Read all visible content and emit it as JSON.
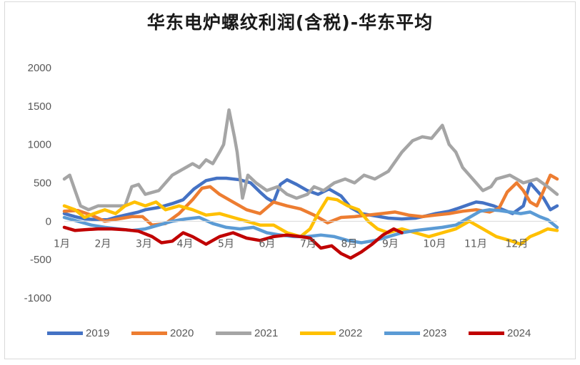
{
  "chart_data": {
    "type": "line",
    "title": "华东电炉螺纹利润(含税)-华东平均",
    "xlabel": "",
    "ylabel": "",
    "ylim": [
      -1000,
      2000
    ],
    "yticks": [
      2000,
      1500,
      1000,
      500,
      0,
      -500,
      -1000
    ],
    "xlim": [
      0,
      365
    ],
    "month_labels": [
      "1月",
      "2月",
      "3月",
      "4月",
      "5月",
      "6月",
      "7月",
      "8月",
      "9月",
      "10月",
      "11月",
      "12月"
    ],
    "grid": false,
    "legend_position": "bottom",
    "series": [
      {
        "name": "2019",
        "color": "#4472c4",
        "x": [
          0,
          8,
          15,
          25,
          32,
          40,
          50,
          55,
          60,
          70,
          80,
          88,
          96,
          105,
          113,
          120,
          130,
          138,
          145,
          150,
          155,
          160,
          165,
          172,
          180,
          188,
          196,
          205,
          212,
          220,
          230,
          240,
          250,
          260,
          268,
          275,
          285,
          292,
          300,
          305,
          310,
          318,
          325,
          332,
          340,
          345,
          350,
          355,
          360,
          365
        ],
        "y": [
          100,
          60,
          30,
          20,
          20,
          60,
          100,
          120,
          150,
          180,
          230,
          280,
          420,
          530,
          560,
          560,
          540,
          500,
          380,
          300,
          250,
          480,
          540,
          480,
          400,
          350,
          420,
          330,
          180,
          100,
          70,
          40,
          30,
          40,
          70,
          100,
          130,
          170,
          220,
          250,
          240,
          200,
          150,
          100,
          200,
          500,
          400,
          300,
          150,
          200
        ]
      },
      {
        "name": "2020",
        "color": "#ed7d31",
        "x": [
          0,
          10,
          20,
          30,
          40,
          50,
          58,
          65,
          75,
          85,
          95,
          102,
          108,
          115,
          125,
          135,
          145,
          155,
          165,
          175,
          185,
          195,
          205,
          215,
          225,
          235,
          245,
          255,
          265,
          275,
          285,
          295,
          305,
          315,
          322,
          328,
          335,
          340,
          345,
          350,
          355,
          360,
          365
        ],
        "y": [
          130,
          140,
          80,
          0,
          30,
          60,
          60,
          -50,
          -30,
          100,
          280,
          430,
          450,
          350,
          250,
          150,
          100,
          250,
          200,
          160,
          80,
          -20,
          50,
          60,
          80,
          100,
          120,
          80,
          60,
          80,
          100,
          130,
          150,
          120,
          170,
          380,
          500,
          400,
          250,
          200,
          400,
          600,
          550
        ]
      },
      {
        "name": "2021",
        "color": "#a5a5a5",
        "x": [
          0,
          4,
          8,
          12,
          18,
          25,
          35,
          45,
          50,
          55,
          60,
          70,
          80,
          90,
          95,
          100,
          105,
          110,
          115,
          118,
          122,
          126,
          128,
          132,
          136,
          142,
          150,
          158,
          165,
          172,
          180,
          185,
          192,
          200,
          208,
          215,
          222,
          230,
          240,
          250,
          258,
          265,
          272,
          280,
          285,
          290,
          295,
          300,
          305,
          310,
          316,
          320,
          330,
          340,
          350,
          358,
          365
        ],
        "y": [
          550,
          600,
          400,
          200,
          150,
          200,
          200,
          200,
          450,
          480,
          350,
          400,
          600,
          700,
          750,
          700,
          800,
          750,
          900,
          1000,
          1450,
          1100,
          900,
          300,
          600,
          500,
          400,
          450,
          350,
          300,
          350,
          450,
          400,
          500,
          550,
          500,
          600,
          550,
          650,
          900,
          1050,
          1100,
          1080,
          1250,
          1000,
          900,
          700,
          600,
          500,
          400,
          450,
          550,
          600,
          500,
          550,
          450,
          350
        ]
      },
      {
        "name": "2022",
        "color": "#ffc000",
        "x": [
          0,
          8,
          15,
          22,
          30,
          38,
          45,
          52,
          60,
          68,
          75,
          85,
          95,
          105,
          115,
          125,
          135,
          145,
          155,
          165,
          175,
          182,
          188,
          195,
          202,
          210,
          218,
          225,
          232,
          240,
          250,
          260,
          270,
          280,
          290,
          300,
          310,
          320,
          330,
          338,
          345,
          352,
          358,
          365
        ],
        "y": [
          200,
          150,
          50,
          100,
          150,
          100,
          200,
          250,
          200,
          250,
          150,
          200,
          150,
          80,
          100,
          50,
          0,
          -50,
          -50,
          -150,
          -200,
          -100,
          100,
          300,
          280,
          200,
          150,
          0,
          -100,
          -150,
          -100,
          -150,
          -200,
          -150,
          -100,
          0,
          -100,
          -200,
          -250,
          -300,
          -200,
          -150,
          -100,
          -120
        ]
      },
      {
        "name": "2023",
        "color": "#5b9bd5",
        "x": [
          0,
          10,
          20,
          30,
          40,
          50,
          60,
          70,
          80,
          90,
          100,
          110,
          120,
          130,
          140,
          150,
          160,
          170,
          180,
          190,
          200,
          210,
          220,
          230,
          240,
          250,
          260,
          270,
          280,
          290,
          300,
          308,
          315,
          322,
          330,
          338,
          345,
          352,
          358,
          365
        ],
        "y": [
          50,
          0,
          -50,
          -80,
          -100,
          -120,
          -100,
          -50,
          0,
          30,
          50,
          -30,
          -80,
          -100,
          -80,
          -150,
          -180,
          -200,
          -200,
          -180,
          -200,
          -250,
          -280,
          -250,
          -200,
          -150,
          -120,
          -100,
          -80,
          -50,
          50,
          130,
          150,
          140,
          120,
          100,
          120,
          60,
          20,
          -80
        ]
      },
      {
        "name": "2024",
        "color": "#c00000",
        "x": [
          0,
          8,
          15,
          25,
          35,
          45,
          55,
          65,
          72,
          80,
          88,
          95,
          105,
          115,
          125,
          135,
          145,
          155,
          165,
          175,
          182,
          190,
          198,
          205,
          212,
          220,
          228,
          236,
          244,
          250
        ],
        "y": [
          -80,
          -120,
          -110,
          -100,
          -100,
          -110,
          -130,
          -200,
          -280,
          -260,
          -150,
          -200,
          -300,
          -200,
          -150,
          -220,
          -250,
          -200,
          -180,
          -200,
          -220,
          -350,
          -320,
          -420,
          -480,
          -400,
          -300,
          -180,
          -100,
          -150
        ]
      }
    ]
  }
}
